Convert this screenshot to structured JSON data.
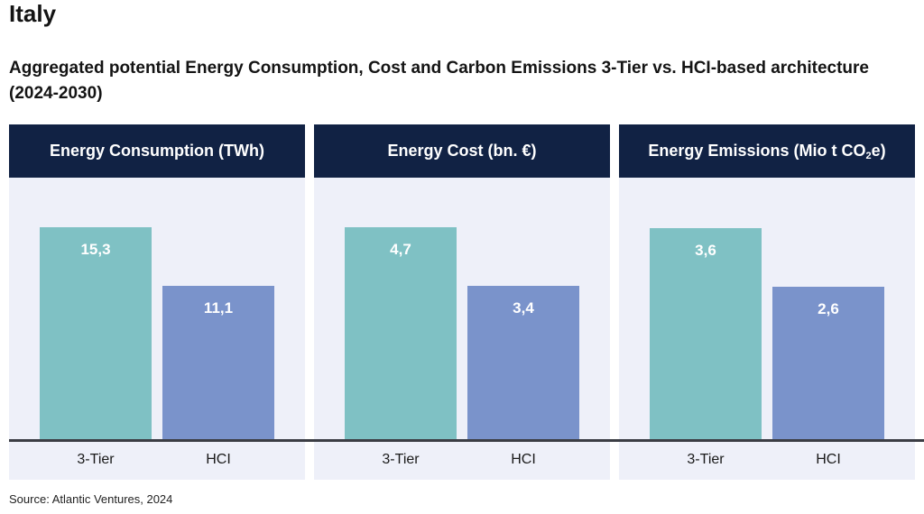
{
  "country": "Italy",
  "subtitle": "Aggregated potential Energy Consumption, Cost and Carbon Emissions 3-Tier vs. HCI-based architecture (2024-2030)",
  "source": "Source: Atlantic Ventures, 2024",
  "colors": {
    "three_tier": "#7fc1c4",
    "hci": "#7a93cb",
    "header": "#112244",
    "panel_bg": "#eef0f9"
  },
  "chart_data": [
    {
      "type": "bar",
      "title": "Energy Consumption (TWh)",
      "title_main": "Energy Consumption (TWh)",
      "title_sub": "",
      "title_end": "",
      "categories": [
        "3-Tier",
        "HCI"
      ],
      "values": [
        15.3,
        11.1
      ],
      "value_labels": [
        "15,3",
        "11,1"
      ],
      "ylim": [
        0,
        18.9
      ]
    },
    {
      "type": "bar",
      "title": "Energy Cost (bn. €)",
      "title_main": "Energy Cost (bn. €)",
      "title_sub": "",
      "title_end": "",
      "categories": [
        "3-Tier",
        "HCI"
      ],
      "values": [
        4.7,
        3.4
      ],
      "value_labels": [
        "4,7",
        "3,4"
      ],
      "ylim": [
        0,
        5.8
      ]
    },
    {
      "type": "bar",
      "title": "Energy Emissions (Mio t CO2e)",
      "title_main": "Energy Emissions (Mio t CO",
      "title_sub": "2",
      "title_end": "e)",
      "categories": [
        "3-Tier",
        "HCI"
      ],
      "values": [
        3.6,
        2.6
      ],
      "value_labels": [
        "3,6",
        "2,6"
      ],
      "ylim": [
        0,
        4.45
      ]
    }
  ]
}
